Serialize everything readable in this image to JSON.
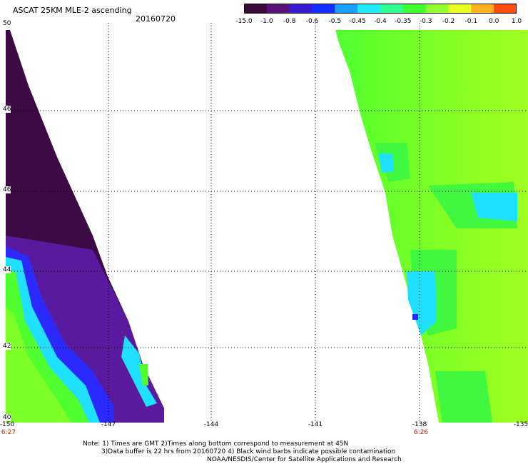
{
  "header": {
    "title": "ASCAT 25KM MLE-2 ascending",
    "date": "20160720"
  },
  "colorbar": {
    "labels": [
      "-15.0",
      "-1.0",
      "-0.8",
      "-0.6",
      "-0.5",
      "-0.45",
      "-0.4",
      "-0.35",
      "-0.3",
      "-0.2",
      "-0.1",
      "0.0",
      "1.0"
    ],
    "colors": [
      "#3a0a3a",
      "#5a0f7a",
      "#3a1ad0",
      "#1030ff",
      "#1aa0ff",
      "#20e8ff",
      "#30ff90",
      "#40ff30",
      "#90ff30",
      "#e8ff20",
      "#ffb020",
      "#ff4a10"
    ]
  },
  "axes": {
    "lat_labels": [
      "50",
      "46",
      "46",
      "44",
      "42",
      "40"
    ],
    "lon_labels": [
      "-150",
      "-147",
      "-144",
      "-141",
      "-138",
      "-135"
    ],
    "time_left": "6:27",
    "time_right": "6:26"
  },
  "colors": {
    "deep_purple": "#3d0a45",
    "purple": "#5a1aa0",
    "blue": "#2a2aff",
    "cyan": "#20e0ff",
    "green": "#50ff30",
    "yellow_green": "#a0ff20",
    "label_red": "#cc2200"
  },
  "notes": {
    "line1": "Note: 1) Times are GMT 2)Times along bottom correspond to measurement at 45N",
    "line2": "3)Data buffer is 22 hrs from 20160720 4) Black wind barbs indicate possible contamination",
    "line3": "NOAA/NESDIS/Center for Satellite Applications and Research"
  }
}
